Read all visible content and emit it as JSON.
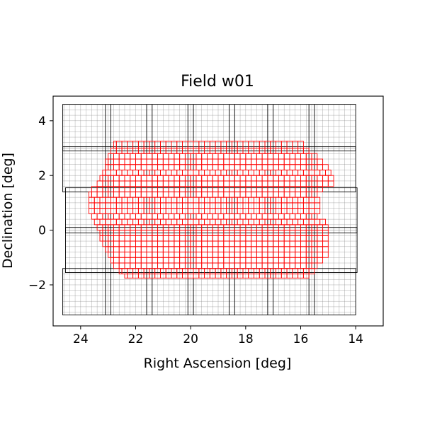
{
  "chart_data": {
    "type": "scatter",
    "title": "Field w01",
    "xlabel": "Right Ascension [deg]",
    "ylabel": "Declination [deg]",
    "xlim": [
      25.0,
      13.0
    ],
    "ylim": [
      -3.5,
      4.9
    ],
    "x_inverted": true,
    "xticks": [
      24,
      22,
      20,
      18,
      16,
      14
    ],
    "xtick_labels": [
      "24",
      "22",
      "20",
      "18",
      "16",
      "14"
    ],
    "yticks": [
      4,
      2,
      0,
      -2
    ],
    "ytick_labels": [
      "4",
      "2",
      "0",
      "−2"
    ],
    "grid": false,
    "colors": {
      "frames": "#000000",
      "fine_grid": "#808080",
      "cells": "#ff0000"
    },
    "ccd_frames": {
      "description_ra_units": "deg",
      "rows": [
        {
          "dec_min": 2.9,
          "dec_max": 4.6,
          "ra_min": 14.0,
          "ra_max": 24.65,
          "chip_cols": 7
        },
        {
          "dec_min": 1.4,
          "dec_max": 3.05,
          "ra_min": 14.0,
          "ra_max": 24.65,
          "chip_cols": 7
        },
        {
          "dec_min": -0.1,
          "dec_max": 1.55,
          "ra_min": 13.95,
          "ra_max": 24.55,
          "chip_cols": 7
        },
        {
          "dec_min": -1.55,
          "dec_max": 0.1,
          "ra_min": 13.95,
          "ra_max": 24.55,
          "chip_cols": 7
        },
        {
          "dec_min": -3.1,
          "dec_max": -1.4,
          "ra_min": 14.0,
          "ra_max": 24.65,
          "chip_cols": 7
        }
      ],
      "dividers_ra": [
        23.1,
        22.9,
        21.6,
        21.4,
        20.1,
        19.9,
        18.6,
        18.4,
        17.2,
        17.0,
        15.7,
        15.5
      ]
    },
    "fine_grid_step_deg": 0.2,
    "cell_size_deg": 0.2,
    "cell_region_rows": [
      {
        "dec_min": 3.0,
        "dec_max": 3.25,
        "ra_min": 15.9,
        "ra_max": 22.8
      },
      {
        "dec_min": 2.8,
        "dec_max": 3.0,
        "ra_min": 15.7,
        "ra_max": 22.9
      },
      {
        "dec_min": 2.6,
        "dec_max": 2.8,
        "ra_min": 15.4,
        "ra_max": 23.0
      },
      {
        "dec_min": 2.4,
        "dec_max": 2.6,
        "ra_min": 15.2,
        "ra_max": 23.1
      },
      {
        "dec_min": 2.2,
        "dec_max": 2.4,
        "ra_min": 15.0,
        "ra_max": 23.1
      },
      {
        "dec_min": 2.0,
        "dec_max": 2.2,
        "ra_min": 14.9,
        "ra_max": 23.2
      },
      {
        "dec_min": 1.8,
        "dec_max": 2.0,
        "ra_min": 14.8,
        "ra_max": 23.3
      },
      {
        "dec_min": 1.6,
        "dec_max": 1.8,
        "ra_min": 14.8,
        "ra_max": 23.4
      },
      {
        "dec_min": 1.4,
        "dec_max": 1.6,
        "ra_min": 15.2,
        "ra_max": 23.6
      },
      {
        "dec_min": 1.2,
        "dec_max": 1.4,
        "ra_min": 15.4,
        "ra_max": 23.7
      },
      {
        "dec_min": 1.0,
        "dec_max": 1.2,
        "ra_min": 15.3,
        "ra_max": 23.7
      },
      {
        "dec_min": 0.8,
        "dec_max": 1.0,
        "ra_min": 15.3,
        "ra_max": 23.7
      },
      {
        "dec_min": 0.6,
        "dec_max": 0.8,
        "ra_min": 15.3,
        "ra_max": 23.7
      },
      {
        "dec_min": 0.4,
        "dec_max": 0.6,
        "ra_min": 15.4,
        "ra_max": 23.6
      },
      {
        "dec_min": 0.2,
        "dec_max": 0.4,
        "ra_min": 15.1,
        "ra_max": 23.5
      },
      {
        "dec_min": 0.0,
        "dec_max": 0.2,
        "ra_min": 15.0,
        "ra_max": 23.4
      },
      {
        "dec_min": -0.2,
        "dec_max": 0.0,
        "ra_min": 15.0,
        "ra_max": 23.3
      },
      {
        "dec_min": -0.4,
        "dec_max": -0.2,
        "ra_min": 15.0,
        "ra_max": 23.3
      },
      {
        "dec_min": -0.6,
        "dec_max": -0.4,
        "ra_min": 15.0,
        "ra_max": 23.2
      },
      {
        "dec_min": -0.8,
        "dec_max": -0.6,
        "ra_min": 15.0,
        "ra_max": 23.1
      },
      {
        "dec_min": -1.0,
        "dec_max": -0.8,
        "ra_min": 15.0,
        "ra_max": 23.0
      },
      {
        "dec_min": -1.2,
        "dec_max": -1.0,
        "ra_min": 15.2,
        "ra_max": 22.9
      },
      {
        "dec_min": -1.4,
        "dec_max": -1.2,
        "ra_min": 15.4,
        "ra_max": 22.8
      },
      {
        "dec_min": -1.6,
        "dec_max": -1.4,
        "ra_min": 15.5,
        "ra_max": 22.6
      },
      {
        "dec_min": -1.75,
        "dec_max": -1.6,
        "ra_min": 15.7,
        "ra_max": 22.4
      }
    ]
  }
}
